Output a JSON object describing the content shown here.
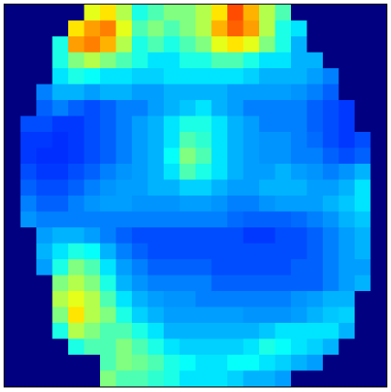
{
  "chart_data": {
    "type": "heatmap",
    "colormap": "jet",
    "clim": [
      0,
      1
    ],
    "values": [
      [
        0,
        0,
        0,
        0,
        0,
        0.6,
        0.65,
        0.55,
        0.4,
        0.45,
        0.5,
        0.5,
        0.55,
        0.65,
        0.8,
        0.7,
        0.55,
        0.45,
        0,
        0,
        0,
        0,
        0,
        0
      ],
      [
        0,
        0,
        0,
        0,
        0.65,
        0.72,
        0.75,
        0.6,
        0.45,
        0.5,
        0.45,
        0.5,
        0.55,
        0.7,
        0.78,
        0.72,
        0.55,
        0.4,
        0.35,
        0,
        0,
        0,
        0,
        0
      ],
      [
        0,
        0,
        0,
        0.4,
        0.72,
        0.75,
        0.7,
        0.55,
        0.4,
        0.45,
        0.4,
        0.45,
        0.5,
        0.6,
        0.65,
        0.6,
        0.5,
        0.4,
        0.3,
        0,
        0,
        0,
        0,
        0
      ],
      [
        0,
        0,
        0,
        0.4,
        0.5,
        0.55,
        0.5,
        0.45,
        0.4,
        0.35,
        0.35,
        0.4,
        0.4,
        0.45,
        0.45,
        0.4,
        0.35,
        0.35,
        0.3,
        0.3,
        0,
        0,
        0,
        0
      ],
      [
        0,
        0,
        0,
        0.35,
        0.4,
        0.38,
        0.35,
        0.35,
        0.33,
        0.33,
        0.35,
        0.35,
        0.35,
        0.35,
        0.35,
        0.33,
        0.3,
        0.3,
        0.3,
        0.28,
        0.25,
        0,
        0,
        0
      ],
      [
        0,
        0,
        0.25,
        0.3,
        0.3,
        0.28,
        0.3,
        0.3,
        0.28,
        0.28,
        0.3,
        0.3,
        0.3,
        0.3,
        0.28,
        0.28,
        0.28,
        0.28,
        0.27,
        0.25,
        0.22,
        0,
        0,
        0
      ],
      [
        0,
        0,
        0.22,
        0.25,
        0.22,
        0.2,
        0.22,
        0.25,
        0.25,
        0.28,
        0.3,
        0.32,
        0.35,
        0.3,
        0.28,
        0.25,
        0.25,
        0.25,
        0.25,
        0.22,
        0.2,
        0.18,
        0,
        0
      ],
      [
        0,
        0.2,
        0.2,
        0.18,
        0.18,
        0.2,
        0.22,
        0.25,
        0.28,
        0.3,
        0.35,
        0.4,
        0.4,
        0.35,
        0.3,
        0.28,
        0.25,
        0.25,
        0.25,
        0.22,
        0.2,
        0.18,
        0,
        0
      ],
      [
        0,
        0.18,
        0.18,
        0.17,
        0.18,
        0.2,
        0.22,
        0.25,
        0.28,
        0.3,
        0.35,
        0.45,
        0.42,
        0.35,
        0.3,
        0.28,
        0.27,
        0.27,
        0.25,
        0.23,
        0.2,
        0.18,
        0.2,
        0
      ],
      [
        0,
        0.18,
        0.17,
        0.17,
        0.18,
        0.2,
        0.22,
        0.25,
        0.28,
        0.3,
        0.38,
        0.5,
        0.45,
        0.35,
        0.3,
        0.28,
        0.27,
        0.27,
        0.25,
        0.25,
        0.22,
        0.2,
        0.22,
        0
      ],
      [
        0,
        0.2,
        0.18,
        0.18,
        0.2,
        0.22,
        0.25,
        0.27,
        0.28,
        0.3,
        0.35,
        0.45,
        0.4,
        0.35,
        0.3,
        0.28,
        0.28,
        0.3,
        0.28,
        0.27,
        0.25,
        0.27,
        0.3,
        0
      ],
      [
        0,
        0.22,
        0.2,
        0.2,
        0.22,
        0.25,
        0.27,
        0.28,
        0.28,
        0.3,
        0.3,
        0.33,
        0.33,
        0.3,
        0.28,
        0.28,
        0.3,
        0.3,
        0.3,
        0.28,
        0.28,
        0.3,
        0.35,
        0
      ],
      [
        0,
        0.25,
        0.22,
        0.22,
        0.25,
        0.27,
        0.28,
        0.28,
        0.27,
        0.27,
        0.27,
        0.28,
        0.28,
        0.27,
        0.25,
        0.25,
        0.27,
        0.28,
        0.28,
        0.28,
        0.3,
        0.32,
        0.35,
        0
      ],
      [
        0,
        0.27,
        0.25,
        0.25,
        0.25,
        0.25,
        0.25,
        0.25,
        0.25,
        0.25,
        0.25,
        0.25,
        0.25,
        0.25,
        0.23,
        0.22,
        0.22,
        0.22,
        0.23,
        0.25,
        0.27,
        0.3,
        0.32,
        0
      ],
      [
        0,
        0,
        0.28,
        0.3,
        0.3,
        0.28,
        0.25,
        0.22,
        0.2,
        0.2,
        0.2,
        0.2,
        0.2,
        0.2,
        0.2,
        0.18,
        0.18,
        0.2,
        0.2,
        0.22,
        0.25,
        0.28,
        0.3,
        0
      ],
      [
        0,
        0,
        0.3,
        0.35,
        0.4,
        0.38,
        0.3,
        0.25,
        0.22,
        0.2,
        0.2,
        0.2,
        0.2,
        0.2,
        0.2,
        0.2,
        0.2,
        0.2,
        0.2,
        0.22,
        0.25,
        0.28,
        0.3,
        0
      ],
      [
        0,
        0,
        0.28,
        0.4,
        0.5,
        0.45,
        0.35,
        0.28,
        0.25,
        0.22,
        0.22,
        0.22,
        0.22,
        0.2,
        0.2,
        0.2,
        0.2,
        0.2,
        0.22,
        0.22,
        0.25,
        0.28,
        0.28,
        0
      ],
      [
        0,
        0,
        0,
        0.5,
        0.55,
        0.5,
        0.4,
        0.3,
        0.27,
        0.25,
        0.25,
        0.25,
        0.25,
        0.22,
        0.22,
        0.22,
        0.22,
        0.22,
        0.22,
        0.22,
        0.25,
        0.28,
        0.3,
        0
      ],
      [
        0,
        0,
        0,
        0.55,
        0.6,
        0.55,
        0.45,
        0.35,
        0.3,
        0.28,
        0.27,
        0.27,
        0.25,
        0.25,
        0.25,
        0.25,
        0.25,
        0.25,
        0.27,
        0.28,
        0.3,
        0.3,
        0,
        0
      ],
      [
        0,
        0,
        0,
        0.5,
        0.65,
        0.55,
        0.5,
        0.4,
        0.33,
        0.3,
        0.28,
        0.28,
        0.28,
        0.28,
        0.28,
        0.27,
        0.27,
        0.27,
        0.28,
        0.3,
        0.32,
        0.33,
        0,
        0
      ],
      [
        0,
        0,
        0,
        0.4,
        0.55,
        0.5,
        0.45,
        0.45,
        0.4,
        0.35,
        0.3,
        0.3,
        0.3,
        0.3,
        0.3,
        0.3,
        0.32,
        0.35,
        0.35,
        0.35,
        0.35,
        0.3,
        0,
        0
      ],
      [
        0,
        0,
        0,
        0,
        0.4,
        0.45,
        0.45,
        0.5,
        0.45,
        0.4,
        0.35,
        0.33,
        0.33,
        0.33,
        0.33,
        0.35,
        0.4,
        0.38,
        0.35,
        0.33,
        0.3,
        0,
        0,
        0
      ],
      [
        0,
        0,
        0,
        0,
        0,
        0,
        0.45,
        0.5,
        0.48,
        0.45,
        0.4,
        0.38,
        0.35,
        0.35,
        0.38,
        0.38,
        0.35,
        0.33,
        0.3,
        0.28,
        0,
        0,
        0,
        0
      ],
      [
        0,
        0,
        0,
        0,
        0,
        0,
        0.5,
        0.45,
        0.45,
        0.42,
        0.4,
        0.35,
        0.35,
        0.35,
        0.33,
        0.3,
        0.3,
        0.28,
        0,
        0,
        0,
        0,
        0,
        0
      ]
    ]
  }
}
